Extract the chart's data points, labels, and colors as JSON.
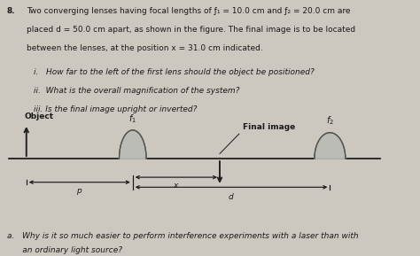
{
  "bg_color": "#ccc8c0",
  "text_color": "#1a1a1a",
  "problem_number": "8.",
  "line1": "Two converging lenses having focal lengths of f",
  "line1b": "1",
  "line1c": " = 10.0 cm and f",
  "line1d": "2",
  "line1e": " = 20.0 cm are",
  "line2": "placed d = 50.0 cm apart, as shown in the figure. The final image is to be located",
  "line3": "between the lenses, at the position x = 31.0 cm indicated.",
  "sub_i": "i.   How far to the left of the first lens should the object be positioned?",
  "sub_ii": "ii.  What is the overall magnification of the system?",
  "sub_iii": "iii.  Is the final image upright or inverted?",
  "bottom_a": "a.   Why is it so much easier to perform interference experiments with a laser than with",
  "bottom_a2": "      an ordinary light source?",
  "lens_color_center": "#b8bab5",
  "lens_color_edge": "#888880",
  "lens_outline_color": "#555550",
  "arrow_color": "#222222",
  "axis_color": "#111111"
}
